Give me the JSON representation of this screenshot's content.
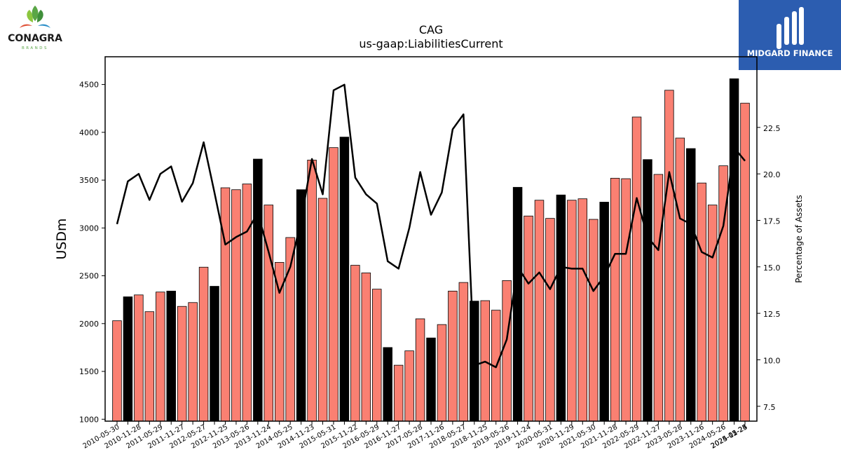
{
  "header": {
    "left_logo_name": "CONAGRA",
    "left_logo_sub": "BRANDS",
    "right_logo_name": "MIDGARD FINANCE"
  },
  "chart_data": {
    "type": "bar",
    "title": "CAG",
    "subtitle": "us-gaap:LiabilitiesCurrent",
    "ylabel": "USDm",
    "y2label": "Percentage of Assets",
    "ylim": [
      980,
      4790
    ],
    "y2lim": [
      6.7,
      26.3
    ],
    "yticks": [
      1000,
      1500,
      2000,
      2500,
      3000,
      3500,
      4000,
      4500
    ],
    "y2ticks": [
      7.5,
      10.0,
      12.5,
      15.0,
      17.5,
      20.0,
      22.5
    ],
    "x_tick_labels_shown": [
      "2010-05-30",
      "2010-11-28",
      "2011-05-29",
      "2011-11-27",
      "2012-05-27",
      "2012-11-25",
      "2013-05-26",
      "2013-11-24",
      "2014-05-25",
      "2014-11-23",
      "2015-05-31",
      "2015-11-22",
      "2016-05-29",
      "2016-11-27",
      "2017-05-28",
      "2017-11-26",
      "2018-05-27",
      "2018-11-25",
      "2019-05-26",
      "2019-11-24",
      "2020-05-31",
      "2020-11-29",
      "2021-05-30",
      "2021-11-28",
      "2022-05-29",
      "2022-11-27",
      "2023-05-28",
      "2023-11-26",
      "2024-05-26",
      "2024-11-24",
      "2025-05-25",
      "2025-02-23"
    ],
    "bar_colors": {
      "quarter": "#fa8072",
      "year_end": "#000000"
    },
    "line_color": "#000000",
    "series": [
      {
        "type": "bar",
        "values": [
          2030,
          2280,
          2300,
          2125,
          2330,
          2340,
          2180,
          2220,
          2590,
          2390,
          3420,
          3400,
          3460,
          3720,
          3240,
          2640,
          2900,
          3400,
          3710,
          3310,
          3840,
          3950,
          2610,
          2530,
          2360,
          1750,
          1565,
          1715,
          2050,
          1850,
          1990,
          2340,
          2430,
          2235,
          2240,
          2140,
          2450,
          3425,
          3125,
          3290,
          3100,
          3345,
          3290,
          3305,
          3090,
          3270,
          3520,
          3515,
          4160,
          3715,
          3560,
          4440,
          3940,
          3830,
          3470,
          3240,
          3650,
          4560,
          4305
        ],
        "year_end_flags": [
          0,
          1,
          0,
          0,
          0,
          1,
          0,
          0,
          0,
          1,
          0,
          0,
          0,
          1,
          0,
          0,
          0,
          1,
          0,
          0,
          0,
          1,
          0,
          0,
          0,
          1,
          0,
          0,
          0,
          1,
          0,
          0,
          0,
          1,
          0,
          0,
          0,
          1,
          0,
          0,
          0,
          1,
          0,
          0,
          0,
          1,
          0,
          0,
          0,
          1,
          0,
          0,
          0,
          1,
          0,
          0,
          0,
          1,
          0
        ]
      },
      {
        "type": "line",
        "axis": "right",
        "values": [
          17.3,
          19.6,
          20.0,
          18.6,
          20.0,
          20.4,
          18.5,
          19.5,
          21.7,
          19.0,
          16.2,
          16.6,
          16.9,
          17.9,
          15.8,
          13.6,
          15.0,
          17.5,
          20.8,
          18.9,
          24.5,
          24.8,
          19.8,
          18.9,
          18.4,
          15.3,
          14.9,
          17.1,
          20.1,
          17.8,
          19.0,
          22.4,
          23.2,
          9.7,
          9.9,
          9.6,
          11.1,
          15.0,
          14.1,
          14.7,
          13.8,
          15.0,
          14.9,
          14.9,
          13.7,
          14.5,
          15.7,
          15.7,
          18.7,
          16.6,
          15.9,
          20.1,
          17.6,
          17.3,
          15.8,
          15.5,
          17.2,
          21.4,
          20.7
        ]
      }
    ]
  }
}
